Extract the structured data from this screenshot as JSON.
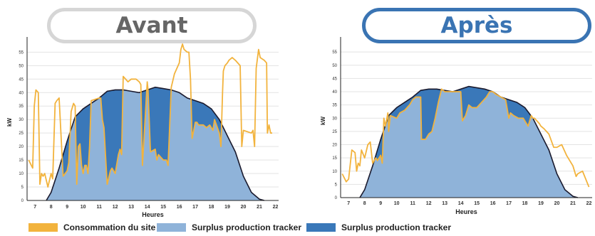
{
  "titles": {
    "before": "Avant",
    "after": "Après"
  },
  "colors": {
    "consumption": "#f2b33d",
    "surplus_light": "#8fb3d9",
    "surplus_dark": "#3a78b9",
    "production_line": "#1a1a2e"
  },
  "legend": [
    {
      "label": "Consommation du site",
      "color": "#f2b33d"
    },
    {
      "label": "Surplus production tracker",
      "color": "#8fb3d9"
    },
    {
      "label": "Surplus production tracker",
      "color": "#3a78b9"
    }
  ],
  "chart_data": [
    {
      "type": "area",
      "panel": "before",
      "xlabel": "Heures",
      "ylabel": "kW",
      "xlim": [
        6.5,
        22.2
      ],
      "ylim": [
        0,
        58
      ],
      "xticks": [
        7,
        8,
        9,
        10,
        11,
        12,
        13,
        14,
        15,
        16,
        17,
        18,
        19,
        20,
        21,
        22
      ],
      "yticks": [
        0,
        5,
        10,
        15,
        20,
        25,
        30,
        35,
        40,
        45,
        50,
        55
      ],
      "production": {
        "x": [
          7.7,
          8,
          8.5,
          9,
          9.5,
          10,
          10.5,
          11,
          11.5,
          12,
          12.5,
          13,
          13.5,
          14,
          14.5,
          15,
          15.5,
          16,
          16.5,
          17,
          17.5,
          18,
          18.5,
          19,
          19.5,
          20,
          20.5,
          21,
          21.3
        ],
        "y": [
          0,
          3,
          12,
          22,
          31,
          34,
          36,
          38,
          40.5,
          41,
          41,
          40.5,
          40,
          41,
          42,
          41.5,
          41,
          40,
          38,
          37,
          36,
          34,
          30,
          24,
          18,
          9,
          3,
          0.5,
          0
        ]
      },
      "consumption": {
        "x": [
          6.6,
          6.85,
          6.95,
          7.05,
          7.2,
          7.3,
          7.4,
          7.5,
          7.6,
          7.8,
          8.0,
          8.1,
          8.25,
          8.35,
          8.5,
          8.75,
          9.0,
          9.1,
          9.25,
          9.4,
          9.5,
          9.6,
          9.7,
          9.8,
          9.9,
          10.0,
          10.1,
          10.2,
          10.3,
          10.4,
          10.5,
          11.0,
          11.1,
          11.2,
          11.3,
          11.5,
          11.7,
          11.8,
          12.0,
          12.2,
          12.3,
          12.4,
          12.5,
          12.8,
          13.0,
          13.3,
          13.5,
          13.6,
          13.7,
          14.0,
          14.05,
          14.2,
          14.5,
          14.6,
          14.7,
          15.0,
          15.1,
          15.2,
          15.3,
          15.5,
          15.7,
          16.0,
          16.1,
          16.2,
          16.3,
          16.5,
          16.6,
          16.7,
          16.8,
          17.0,
          17.1,
          17.2,
          17.5,
          17.7,
          17.9,
          18.1,
          18.2,
          18.5,
          18.6,
          18.7,
          18.75,
          18.8,
          18.85,
          19.0,
          19.1,
          19.3,
          19.5,
          19.8,
          19.9,
          20.0,
          20.5,
          20.6,
          20.7,
          20.8,
          20.95,
          21.05,
          21.3,
          21.45,
          21.5,
          21.6,
          21.7,
          21.8
        ],
        "y": [
          15,
          12,
          35,
          41,
          40,
          6,
          10,
          9,
          10,
          5,
          10,
          8,
          36,
          37,
          38,
          9,
          11,
          14,
          33,
          36,
          35,
          6,
          20,
          21,
          13,
          10,
          13,
          13,
          10,
          20,
          37,
          38,
          38,
          30,
          27,
          6,
          11,
          12,
          10,
          17,
          19,
          17,
          46,
          44,
          45,
          45,
          44,
          43,
          13,
          44,
          41,
          18,
          19,
          15,
          17,
          15,
          15,
          15,
          13,
          42,
          47,
          51,
          56,
          58,
          56,
          55,
          55,
          45,
          23,
          29,
          29,
          28,
          28,
          27,
          28,
          26,
          30,
          25,
          20,
          40,
          48,
          49,
          50,
          51,
          52,
          53,
          52,
          50,
          20,
          26,
          25,
          26,
          20,
          49,
          56,
          53,
          52,
          51,
          25,
          28,
          25,
          25
        ]
      }
    },
    {
      "type": "area",
      "panel": "after",
      "xlabel": "Heures",
      "ylabel": "kW",
      "xlim": [
        6.5,
        22.2
      ],
      "ylim": [
        0,
        58
      ],
      "xticks": [
        7,
        8,
        9,
        10,
        11,
        12,
        13,
        14,
        15,
        16,
        17,
        18,
        19,
        20,
        21,
        22
      ],
      "yticks": [
        0,
        5,
        10,
        15,
        20,
        25,
        30,
        35,
        40,
        45,
        50,
        55
      ],
      "production": {
        "x": [
          7.7,
          8,
          8.5,
          9,
          9.5,
          10,
          10.5,
          11,
          11.5,
          12,
          12.5,
          13,
          13.5,
          14,
          14.5,
          15,
          15.5,
          16,
          16.5,
          17,
          17.5,
          18,
          18.5,
          19,
          19.5,
          20,
          20.5,
          21,
          21.3
        ],
        "y": [
          0,
          3,
          12,
          22,
          31,
          34,
          36,
          38,
          40.5,
          41,
          41,
          40.5,
          40,
          41,
          42,
          41.5,
          41,
          40,
          38,
          37,
          36,
          34,
          30,
          24,
          18,
          9,
          3,
          0.5,
          0
        ]
      },
      "consumption": {
        "x": [
          6.6,
          6.85,
          7.0,
          7.2,
          7.4,
          7.5,
          7.6,
          7.7,
          7.8,
          8.0,
          8.2,
          8.35,
          8.5,
          8.7,
          8.8,
          9.0,
          9.1,
          9.2,
          9.3,
          9.45,
          9.5,
          9.6,
          10.0,
          10.2,
          10.5,
          10.8,
          11.0,
          11.2,
          11.5,
          11.55,
          11.8,
          12.0,
          12.2,
          12.4,
          12.6,
          12.8,
          13.0,
          13.4,
          13.8,
          14.0,
          14.1,
          14.3,
          14.5,
          14.7,
          15.0,
          15.3,
          15.6,
          15.8,
          16.0,
          16.2,
          16.5,
          16.8,
          17.0,
          17.1,
          17.3,
          17.6,
          17.9,
          18.2,
          18.4,
          18.5,
          18.6,
          18.9,
          19.0,
          19.2,
          19.5,
          19.8,
          20.0,
          20.3,
          20.6,
          21.0,
          21.2,
          21.3,
          21.6,
          21.8,
          22.0
        ],
        "y": [
          9,
          6,
          7,
          18,
          17,
          10,
          13,
          12,
          18,
          15,
          20,
          21,
          13,
          15,
          14,
          16,
          13,
          30,
          27,
          32,
          25,
          31,
          30,
          32,
          33,
          35,
          37,
          38,
          38,
          22,
          22,
          24,
          25,
          30,
          36,
          41,
          40,
          40,
          40,
          40,
          29,
          31,
          35,
          34,
          34,
          36,
          38,
          40,
          40,
          39,
          38,
          37,
          30,
          32,
          31,
          30,
          30,
          27,
          31,
          30,
          30,
          28,
          27,
          26,
          24,
          19,
          19,
          20,
          16,
          12,
          8,
          9,
          10,
          7,
          4
        ]
      }
    }
  ]
}
